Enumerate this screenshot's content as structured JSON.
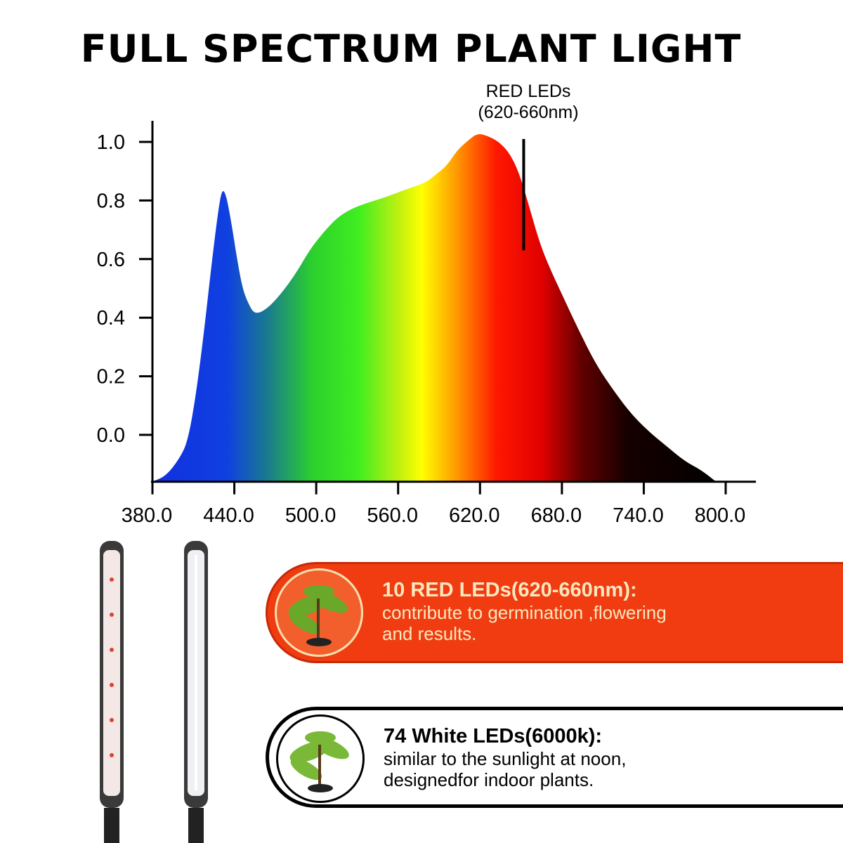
{
  "title": "FULL SPECTRUM PLANT LIGHT",
  "chart_data": {
    "type": "area",
    "title": "FULL SPECTRUM PLANT LIGHT",
    "xlabel": "",
    "ylabel": "",
    "xlim": [
      380,
      820
    ],
    "ylim": [
      -0.16,
      1.08
    ],
    "x_ticks": [
      "380.0",
      "440.0",
      "500.0",
      "560.0",
      "620.0",
      "680.0",
      "740.0",
      "800.0"
    ],
    "y_ticks": [
      "0.0",
      "0.2",
      "0.4",
      "0.6",
      "0.8",
      "1.0"
    ],
    "grid": false,
    "fill": "visible-spectrum gradient (blue to red to black)",
    "x": [
      380,
      390,
      400,
      406,
      412,
      418,
      423,
      428,
      431,
      434,
      438,
      442,
      446,
      450,
      455,
      464,
      474,
      485,
      495,
      505,
      515,
      525,
      536,
      550,
      567,
      580,
      588,
      596,
      603,
      610,
      618,
      626,
      634,
      642,
      649,
      656,
      664,
      672,
      680,
      692,
      705,
      718,
      731,
      744,
      757,
      770,
      782,
      793
    ],
    "y": [
      -0.16,
      -0.14,
      -0.08,
      -0.02,
      0.14,
      0.36,
      0.57,
      0.76,
      0.84,
      0.82,
      0.72,
      0.6,
      0.5,
      0.45,
      0.41,
      0.43,
      0.48,
      0.55,
      0.63,
      0.69,
      0.74,
      0.77,
      0.79,
      0.81,
      0.84,
      0.86,
      0.89,
      0.92,
      0.97,
      1.0,
      1.03,
      1.02,
      1.0,
      0.96,
      0.89,
      0.78,
      0.65,
      0.56,
      0.48,
      0.36,
      0.24,
      0.15,
      0.07,
      0.01,
      -0.04,
      -0.09,
      -0.12,
      -0.16
    ],
    "annotation": {
      "text_line1": "RED LEDs",
      "text_line2": "(620-660nm)",
      "x": 652,
      "y_from": 0.63,
      "y_to": 1.01
    }
  },
  "cards": [
    {
      "heading": "10 RED LEDs(620-660nm):",
      "line1": "contribute to germination ,flowering",
      "line2": "and results.",
      "color": "#f03c10"
    },
    {
      "heading": "74 White LEDs(6000k):",
      "line1": "similar to the sunlight at noon,",
      "line2": "designedfor indoor plants.",
      "color": "#ffffff"
    }
  ],
  "colors": {
    "red_card": "#f03c10",
    "text_cream": "#fbe8c0"
  }
}
